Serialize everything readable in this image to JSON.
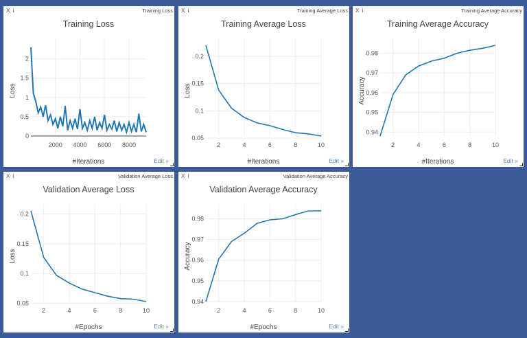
{
  "ui": {
    "close_label": "X",
    "info_label": "i",
    "edit_label": "Edit »"
  },
  "colors": {
    "background": "#3b5a9a",
    "line": "#1f77b4",
    "edit_link": "#5b8ac6"
  },
  "chart_data": [
    {
      "type": "line",
      "window_title": "Training Loss",
      "title": "Training Loss",
      "xlabel": "#Iterations",
      "ylabel": "Loss",
      "xlim": [
        0,
        9400
      ],
      "ylim": [
        0,
        2.35
      ],
      "xticks": [
        2000,
        4000,
        6000,
        8000
      ],
      "yticks": [
        0,
        0.5,
        1,
        1.5,
        2
      ],
      "ytick_labels": [
        "0",
        "0.5",
        "1",
        "1.5",
        "2"
      ],
      "grid": true,
      "x": [
        0,
        200,
        400,
        600,
        800,
        1000,
        1200,
        1400,
        1600,
        1800,
        2000,
        2200,
        2400,
        2600,
        2800,
        3000,
        3200,
        3400,
        3600,
        3800,
        4000,
        4200,
        4400,
        4600,
        4800,
        5000,
        5200,
        5400,
        5600,
        5800,
        6000,
        6200,
        6400,
        6600,
        6800,
        7000,
        7200,
        7400,
        7600,
        7800,
        8000,
        8200,
        8400,
        8600,
        8800,
        9000,
        9200,
        9400
      ],
      "y": [
        2.3,
        1.1,
        0.9,
        0.6,
        0.75,
        0.5,
        0.8,
        0.4,
        0.55,
        0.3,
        0.45,
        0.2,
        0.5,
        0.25,
        0.78,
        0.15,
        0.4,
        0.2,
        0.45,
        0.18,
        0.7,
        0.2,
        0.35,
        0.15,
        0.4,
        0.2,
        0.5,
        0.15,
        0.35,
        0.2,
        0.55,
        0.15,
        0.3,
        0.18,
        0.4,
        0.12,
        0.35,
        0.15,
        0.3,
        0.1,
        0.35,
        0.12,
        0.3,
        0.1,
        0.58,
        0.12,
        0.3,
        0.1
      ]
    },
    {
      "type": "line",
      "window_title": "Training Average Loss",
      "title": "Training Average Loss",
      "xlabel": "#Iterations",
      "ylabel": "Loss",
      "xlim": [
        1,
        10
      ],
      "ylim": [
        0.054,
        0.22
      ],
      "xticks": [
        2,
        4,
        6,
        8,
        10
      ],
      "yticks": [
        0.05,
        0.1,
        0.15,
        0.2
      ],
      "ytick_labels": [
        "0.05",
        "0.1",
        "0.15",
        "0.2"
      ],
      "grid": true,
      "x": [
        1,
        2,
        3,
        4,
        5,
        6,
        7,
        8,
        9,
        10
      ],
      "y": [
        0.22,
        0.138,
        0.105,
        0.088,
        0.078,
        0.073,
        0.066,
        0.06,
        0.058,
        0.054
      ]
    },
    {
      "type": "line",
      "window_title": "Training Average Accuracy",
      "title": "Training Average Accuracy",
      "xlabel": "#Iterations",
      "ylabel": "Accuracy",
      "xlim": [
        1,
        10
      ],
      "ylim": [
        0.938,
        0.984
      ],
      "xticks": [
        2,
        4,
        6,
        8,
        10
      ],
      "yticks": [
        0.94,
        0.95,
        0.96,
        0.97,
        0.98
      ],
      "ytick_labels": [
        "0.94",
        "0.95",
        "0.96",
        "0.97",
        "0.98"
      ],
      "grid": true,
      "x": [
        1,
        2,
        3,
        4,
        5,
        6,
        7,
        8,
        9,
        10
      ],
      "y": [
        0.938,
        0.959,
        0.969,
        0.9735,
        0.976,
        0.9775,
        0.98,
        0.9815,
        0.9825,
        0.984
      ]
    },
    {
      "type": "line",
      "window_title": "Validation Average Loss",
      "title": "Validation Average Loss",
      "xlabel": "#Epochs",
      "ylabel": "Loss",
      "xlim": [
        1,
        10
      ],
      "ylim": [
        0.053,
        0.205
      ],
      "xticks": [
        2,
        4,
        6,
        8,
        10
      ],
      "yticks": [
        0.05,
        0.1,
        0.15,
        0.2
      ],
      "ytick_labels": [
        "0.05",
        "0.1",
        "0.15",
        "0.2"
      ],
      "grid": true,
      "x": [
        1,
        2,
        3,
        4,
        5,
        6,
        7,
        8,
        9,
        10
      ],
      "y": [
        0.205,
        0.127,
        0.097,
        0.084,
        0.074,
        0.068,
        0.062,
        0.058,
        0.057,
        0.053
      ]
    },
    {
      "type": "line",
      "window_title": "Validation Average Accuracy",
      "title": "Validation Average Accuracy",
      "xlabel": "#Epochs",
      "ylabel": "Accuracy",
      "xlim": [
        1,
        10
      ],
      "ylim": [
        0.94,
        0.9838
      ],
      "xticks": [
        2,
        4,
        6,
        8,
        10
      ],
      "yticks": [
        0.94,
        0.95,
        0.96,
        0.97,
        0.98
      ],
      "ytick_labels": [
        "0.94",
        "0.95",
        "0.96",
        "0.97",
        "0.98"
      ],
      "grid": true,
      "x": [
        1,
        2,
        3,
        4,
        5,
        6,
        7,
        8,
        9,
        10
      ],
      "y": [
        0.94,
        0.9605,
        0.969,
        0.973,
        0.9778,
        0.9795,
        0.98,
        0.982,
        0.9838,
        0.9838
      ]
    }
  ]
}
